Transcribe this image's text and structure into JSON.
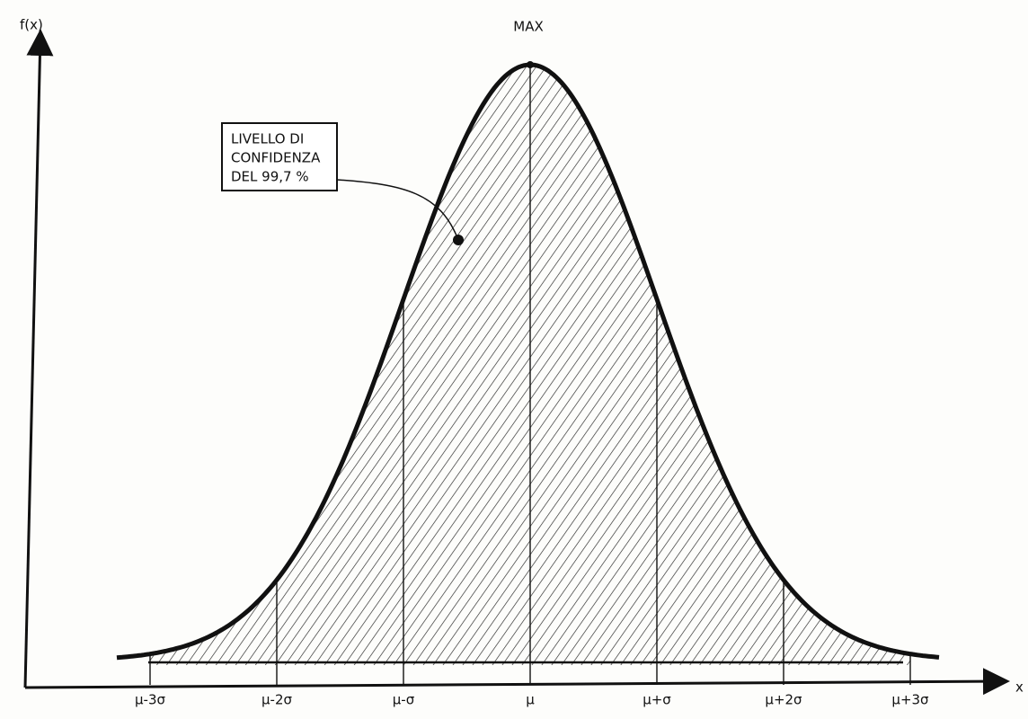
{
  "axes": {
    "y_label": "f(x)",
    "x_label": "x"
  },
  "peak_label": "MAX",
  "callout": {
    "lines": [
      "LIVELLO DI",
      "CONFIDENZA",
      "DEL 99,7 %"
    ]
  },
  "ticks": [
    "μ-3σ",
    "μ-2σ",
    "μ-σ",
    "μ",
    "μ+σ",
    "μ+2σ",
    "μ+3σ"
  ]
}
